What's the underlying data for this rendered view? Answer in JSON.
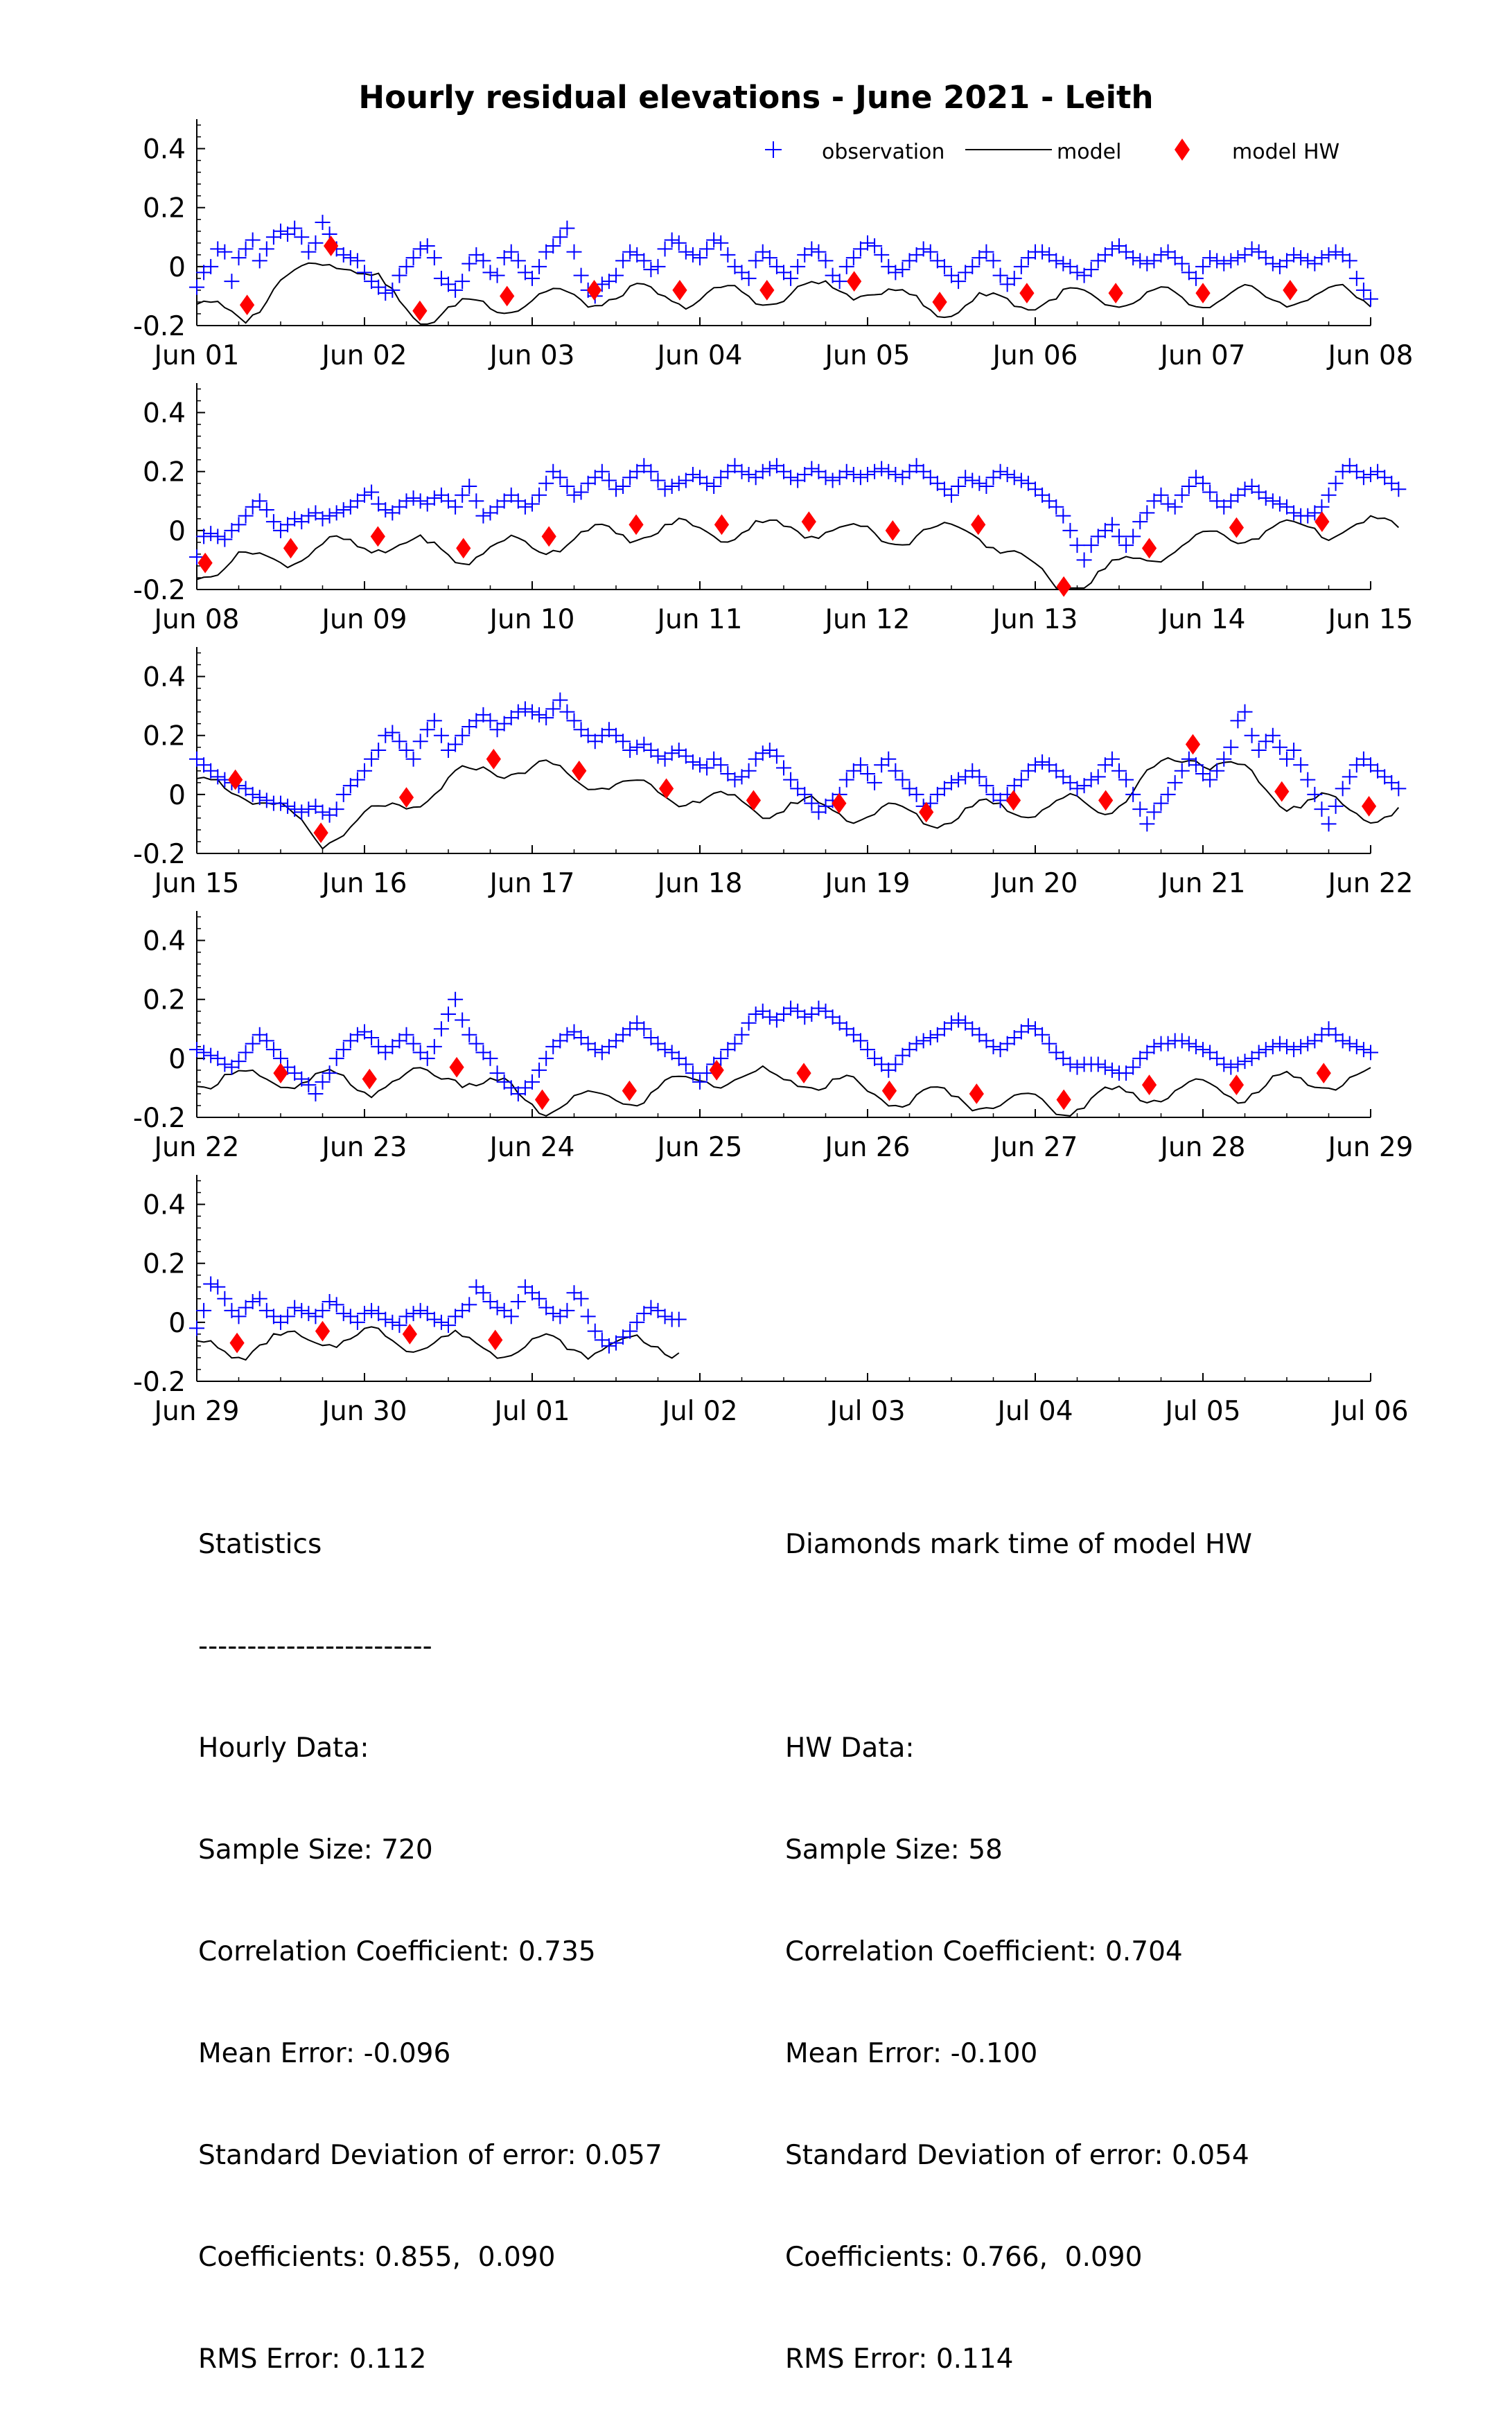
{
  "chart_data": {
    "type": "scatter",
    "title": "Hourly residual elevations - June  2021 - Leith",
    "xlabel": "",
    "ylabel": "",
    "ylim": [
      -0.2,
      0.5
    ],
    "yticks": [
      -0.2,
      0,
      0.2,
      0.4
    ],
    "ytick_labels": [
      "-0.2",
      "0",
      "0.2",
      "0.4"
    ],
    "grid": false,
    "legend_position": "top-right",
    "legend": [
      "observation",
      "model",
      "model HW"
    ],
    "colors": {
      "observation": "#0000ff",
      "model": "#000000",
      "model_hw": "#ff0000"
    },
    "panels": [
      {
        "start_day": 1,
        "xtick_labels": [
          "Jun 01",
          "Jun 02",
          "Jun 03",
          "Jun 04",
          "Jun 05",
          "Jun 06",
          "Jun 07",
          "Jun 08"
        ],
        "hw_days": [
          1.3,
          1.8,
          2.33,
          2.85,
          3.37,
          3.88,
          4.4,
          4.92,
          5.43,
          5.95,
          6.48,
          7.0,
          7.52
        ],
        "hw_values": [
          -0.13,
          0.07,
          -0.15,
          -0.1,
          -0.08,
          -0.08,
          -0.08,
          -0.05,
          -0.12,
          -0.09,
          -0.09,
          -0.09,
          -0.08
        ]
      },
      {
        "start_day": 8,
        "xtick_labels": [
          "Jun 08",
          "Jun 09",
          "Jun 10",
          "Jun 11",
          "Jun 12",
          "Jun 13",
          "Jun 14",
          "Jun 15"
        ],
        "hw_days": [
          8.05,
          8.56,
          9.08,
          9.59,
          10.1,
          10.62,
          11.13,
          11.65,
          12.15,
          12.66,
          13.17,
          13.68,
          14.2,
          14.71
        ],
        "hw_values": [
          -0.11,
          -0.06,
          -0.02,
          -0.06,
          -0.02,
          0.02,
          0.02,
          0.03,
          0.0,
          0.02,
          -0.19,
          -0.06,
          0.01,
          0.03
        ]
      },
      {
        "start_day": 15,
        "xtick_labels": [
          "Jun 15",
          "Jun 16",
          "Jun 17",
          "Jun 18",
          "Jun 19",
          "Jun 20",
          "Jun 21",
          "Jun 22"
        ],
        "hw_days": [
          15.23,
          15.74,
          16.25,
          16.77,
          17.28,
          17.8,
          18.32,
          18.83,
          19.35,
          19.87,
          20.42,
          20.94,
          21.47,
          21.99
        ],
        "hw_values": [
          0.05,
          -0.13,
          -0.01,
          0.12,
          0.08,
          0.02,
          -0.02,
          -0.03,
          -0.06,
          -0.02,
          -0.02,
          0.17,
          0.01,
          -0.04
        ]
      },
      {
        "start_day": 22,
        "xtick_labels": [
          "Jun 22",
          "Jun 23",
          "Jun 24",
          "Jun 25",
          "Jun 26",
          "Jun 27",
          "Jun 28",
          "Jun 29"
        ],
        "hw_days": [
          22.5,
          23.03,
          23.55,
          24.06,
          24.58,
          25.1,
          25.62,
          26.13,
          26.65,
          27.17,
          27.68,
          28.2,
          28.72
        ],
        "hw_values": [
          -0.05,
          -0.07,
          -0.03,
          -0.14,
          -0.11,
          -0.04,
          -0.05,
          -0.11,
          -0.12,
          -0.14,
          -0.09,
          -0.09,
          -0.05
        ]
      },
      {
        "start_day": 29,
        "xtick_labels": [
          "Jun 29",
          "Jun 30",
          "Jul 01",
          "Jul 02",
          "Jul 03",
          "Jul 04",
          "Jul 05",
          "Jul 06"
        ],
        "hw_days": [
          29.24,
          29.75,
          30.27,
          30.78
        ],
        "hw_values": [
          -0.07,
          -0.03,
          -0.04,
          -0.06
        ]
      }
    ],
    "observation_series": [
      [
        -0.07,
        -0.02,
        0.0,
        0.06,
        0.05,
        -0.05,
        0.03,
        0.06,
        0.09,
        0.02,
        0.06,
        0.1,
        0.12,
        0.11,
        0.13,
        0.1,
        0.05,
        0.08,
        0.15,
        0.11,
        0.06,
        0.04,
        0.03,
        0.02,
        -0.02,
        -0.05,
        -0.07,
        -0.09,
        -0.08,
        -0.03,
        0.0,
        0.03,
        0.06,
        0.07,
        0.03,
        -0.04,
        -0.06,
        -0.08,
        -0.05,
        0.01,
        0.04,
        0.02,
        -0.02,
        -0.03,
        0.03,
        0.05,
        0.02,
        -0.02,
        -0.04,
        0.0,
        0.05,
        0.07,
        0.1,
        0.13,
        0.05,
        -0.03,
        -0.08,
        -0.1,
        -0.06,
        -0.05,
        -0.03,
        0.02,
        0.05,
        0.04,
        0.02,
        -0.01,
        0.0,
        0.06,
        0.09,
        0.08,
        0.05,
        0.04,
        0.03,
        0.06,
        0.09,
        0.08,
        0.04,
        0.0,
        -0.02,
        -0.04,
        0.02,
        0.05,
        0.03,
        0.0,
        -0.02,
        -0.04,
        0.0,
        0.04,
        0.06,
        0.05,
        0.02,
        -0.03,
        -0.05,
        0.0,
        0.03,
        0.06,
        0.08,
        0.07,
        0.04,
        0.0,
        -0.02,
        -0.01,
        0.02,
        0.04,
        0.06,
        0.05,
        0.02,
        0.0,
        -0.03,
        -0.05,
        -0.02,
        0.0,
        0.03,
        0.05,
        0.02,
        -0.03,
        -0.06,
        -0.04,
        0.0,
        0.03,
        0.05,
        0.05,
        0.04,
        0.02,
        0.01,
        0.0,
        -0.02,
        -0.03,
        -0.01,
        0.02,
        0.04,
        0.06,
        0.07,
        0.05,
        0.03,
        0.02,
        0.01,
        0.02,
        0.04,
        0.05,
        0.03,
        0.01,
        -0.02,
        -0.04,
        0.0,
        0.03,
        0.02,
        0.01,
        0.02,
        0.03,
        0.04,
        0.06,
        0.05,
        0.03,
        0.01,
        0.0,
        0.02,
        0.04,
        0.03,
        0.02,
        0.01,
        0.03,
        0.04,
        0.05,
        0.04,
        0.02,
        -0.04,
        -0.08,
        -0.11
      ],
      [
        -0.09,
        -0.02,
        -0.01,
        -0.02,
        -0.03,
        0.0,
        0.02,
        0.05,
        0.08,
        0.1,
        0.07,
        0.03,
        0.0,
        0.02,
        0.04,
        0.03,
        0.05,
        0.06,
        0.04,
        0.05,
        0.06,
        0.07,
        0.08,
        0.1,
        0.12,
        0.13,
        0.09,
        0.07,
        0.06,
        0.08,
        0.1,
        0.11,
        0.1,
        0.09,
        0.11,
        0.12,
        0.1,
        0.08,
        0.12,
        0.15,
        0.1,
        0.05,
        0.06,
        0.08,
        0.1,
        0.12,
        0.1,
        0.08,
        0.09,
        0.12,
        0.16,
        0.2,
        0.18,
        0.15,
        0.12,
        0.13,
        0.16,
        0.18,
        0.2,
        0.17,
        0.14,
        0.15,
        0.18,
        0.2,
        0.22,
        0.2,
        0.17,
        0.14,
        0.15,
        0.16,
        0.17,
        0.19,
        0.18,
        0.16,
        0.15,
        0.18,
        0.2,
        0.22,
        0.2,
        0.19,
        0.18,
        0.2,
        0.21,
        0.22,
        0.2,
        0.18,
        0.17,
        0.19,
        0.21,
        0.2,
        0.18,
        0.17,
        0.18,
        0.2,
        0.19,
        0.18,
        0.19,
        0.2,
        0.21,
        0.2,
        0.19,
        0.18,
        0.2,
        0.22,
        0.2,
        0.18,
        0.16,
        0.14,
        0.12,
        0.15,
        0.18,
        0.17,
        0.16,
        0.15,
        0.18,
        0.2,
        0.19,
        0.18,
        0.17,
        0.16,
        0.14,
        0.12,
        0.1,
        0.08,
        0.05,
        0.0,
        -0.05,
        -0.1,
        -0.05,
        -0.02,
        0.0,
        0.02,
        -0.02,
        -0.05,
        -0.02,
        0.03,
        0.06,
        0.1,
        0.12,
        0.09,
        0.08,
        0.12,
        0.15,
        0.18,
        0.16,
        0.13,
        0.1,
        0.08,
        0.1,
        0.12,
        0.14,
        0.15,
        0.13,
        0.11,
        0.1,
        0.09,
        0.08,
        0.06,
        0.05,
        0.05,
        0.06,
        0.08,
        0.12,
        0.16,
        0.2,
        0.22,
        0.2,
        0.18,
        0.19,
        0.2,
        0.18,
        0.16,
        0.14
      ],
      [
        0.12,
        0.1,
        0.08,
        0.06,
        0.05,
        0.04,
        0.03,
        0.02,
        0.0,
        -0.01,
        -0.02,
        -0.03,
        -0.03,
        -0.04,
        -0.05,
        -0.06,
        -0.05,
        -0.04,
        -0.06,
        -0.07,
        -0.05,
        0.0,
        0.03,
        0.05,
        0.08,
        0.12,
        0.15,
        0.2,
        0.21,
        0.18,
        0.15,
        0.12,
        0.18,
        0.22,
        0.25,
        0.2,
        0.15,
        0.17,
        0.2,
        0.23,
        0.25,
        0.27,
        0.25,
        0.22,
        0.24,
        0.26,
        0.28,
        0.29,
        0.28,
        0.27,
        0.26,
        0.29,
        0.32,
        0.28,
        0.25,
        0.22,
        0.2,
        0.18,
        0.2,
        0.22,
        0.2,
        0.18,
        0.15,
        0.16,
        0.17,
        0.15,
        0.13,
        0.12,
        0.14,
        0.15,
        0.13,
        0.11,
        0.1,
        0.09,
        0.12,
        0.1,
        0.07,
        0.05,
        0.06,
        0.08,
        0.12,
        0.14,
        0.15,
        0.13,
        0.09,
        0.05,
        0.02,
        0.0,
        -0.03,
        -0.06,
        -0.04,
        -0.02,
        0.0,
        0.05,
        0.08,
        0.1,
        0.07,
        0.04,
        0.1,
        0.12,
        0.08,
        0.05,
        0.02,
        0.0,
        -0.04,
        -0.03,
        0.0,
        0.02,
        0.04,
        0.05,
        0.06,
        0.08,
        0.06,
        0.03,
        0.0,
        -0.02,
        0.0,
        0.03,
        0.05,
        0.08,
        0.1,
        0.11,
        0.1,
        0.08,
        0.06,
        0.04,
        0.02,
        0.03,
        0.05,
        0.06,
        0.1,
        0.12,
        0.08,
        0.05,
        0.0,
        -0.05,
        -0.1,
        -0.06,
        -0.03,
        0.0,
        0.04,
        0.08,
        0.12,
        0.1,
        0.07,
        0.05,
        0.08,
        0.12,
        0.16,
        0.25,
        0.28,
        0.2,
        0.15,
        0.18,
        0.2,
        0.16,
        0.12,
        0.15,
        0.1,
        0.05,
        0.0,
        -0.05,
        -0.1,
        -0.04,
        0.02,
        0.06,
        0.1,
        0.12,
        0.1,
        0.08,
        0.06,
        0.04,
        0.02
      ],
      [
        0.03,
        0.02,
        0.01,
        0.0,
        -0.02,
        -0.03,
        -0.01,
        0.02,
        0.05,
        0.08,
        0.06,
        0.03,
        0.0,
        -0.03,
        -0.05,
        -0.07,
        -0.09,
        -0.12,
        -0.08,
        -0.05,
        0.0,
        0.03,
        0.06,
        0.08,
        0.09,
        0.07,
        0.04,
        0.02,
        0.04,
        0.06,
        0.08,
        0.05,
        0.02,
        0.0,
        0.04,
        0.1,
        0.15,
        0.2,
        0.13,
        0.08,
        0.05,
        0.02,
        0.0,
        -0.05,
        -0.08,
        -0.1,
        -0.12,
        -0.1,
        -0.08,
        -0.04,
        0.0,
        0.04,
        0.06,
        0.08,
        0.09,
        0.07,
        0.05,
        0.03,
        0.02,
        0.04,
        0.06,
        0.08,
        0.1,
        0.12,
        0.1,
        0.07,
        0.05,
        0.03,
        0.02,
        0.0,
        -0.02,
        -0.05,
        -0.08,
        -0.05,
        -0.02,
        0.0,
        0.03,
        0.05,
        0.08,
        0.12,
        0.15,
        0.16,
        0.14,
        0.13,
        0.15,
        0.17,
        0.16,
        0.14,
        0.15,
        0.17,
        0.16,
        0.14,
        0.12,
        0.1,
        0.08,
        0.06,
        0.03,
        0.0,
        -0.02,
        -0.04,
        -0.02,
        0.01,
        0.03,
        0.05,
        0.06,
        0.07,
        0.08,
        0.1,
        0.12,
        0.13,
        0.12,
        0.1,
        0.08,
        0.06,
        0.04,
        0.03,
        0.05,
        0.07,
        0.09,
        0.11,
        0.1,
        0.08,
        0.05,
        0.02,
        0.0,
        -0.02,
        -0.03,
        -0.02,
        -0.02,
        -0.02,
        -0.03,
        -0.04,
        -0.05,
        -0.05,
        -0.03,
        0.0,
        0.02,
        0.04,
        0.05,
        0.05,
        0.06,
        0.06,
        0.05,
        0.04,
        0.03,
        0.02,
        0.0,
        -0.02,
        -0.03,
        -0.02,
        -0.01,
        0.0,
        0.02,
        0.03,
        0.04,
        0.05,
        0.04,
        0.03,
        0.04,
        0.05,
        0.06,
        0.08,
        0.1,
        0.08,
        0.06,
        0.05,
        0.04,
        0.03,
        0.02
      ],
      [
        -0.02,
        0.04,
        0.13,
        0.12,
        0.08,
        0.04,
        0.02,
        0.05,
        0.07,
        0.08,
        0.04,
        0.02,
        0.0,
        0.02,
        0.05,
        0.04,
        0.03,
        0.02,
        0.04,
        0.07,
        0.06,
        0.03,
        0.02,
        0.0,
        0.03,
        0.04,
        0.03,
        0.01,
        0.0,
        -0.01,
        0.02,
        0.03,
        0.04,
        0.03,
        0.01,
        0.0,
        -0.01,
        0.02,
        0.04,
        0.06,
        0.12,
        0.1,
        0.07,
        0.05,
        0.04,
        0.02,
        0.07,
        0.12,
        0.1,
        0.08,
        0.05,
        0.03,
        0.02,
        0.04,
        0.1,
        0.08,
        0.02,
        -0.03,
        -0.06,
        -0.08,
        -0.07,
        -0.05,
        -0.03,
        0.0,
        0.03,
        0.05,
        0.04,
        0.02,
        0.01,
        0.01
      ]
    ]
  },
  "stats_left": {
    "heading": "Statistics",
    "divider": "------------------------",
    "subheading": "Hourly Data:",
    "sample_size": "Sample Size: 720",
    "correlation": "Correlation Coefficient: 0.735",
    "mean_error": "Mean Error: -0.096",
    "std_dev": "Standard Deviation of error: 0.057",
    "coefficients": "Coefficients: 0.855,  0.090",
    "rms": "RMS Error: 0.112"
  },
  "stats_right": {
    "heading": "Diamonds mark time of model HW",
    "subheading": "HW Data:",
    "sample_size": "Sample Size: 58",
    "correlation": "Correlation Coefficient: 0.704",
    "mean_error": "Mean Error: -0.100",
    "std_dev": "Standard Deviation of error: 0.054",
    "coefficients": "Coefficients: 0.766,  0.090",
    "rms": "RMS Error: 0.114"
  }
}
